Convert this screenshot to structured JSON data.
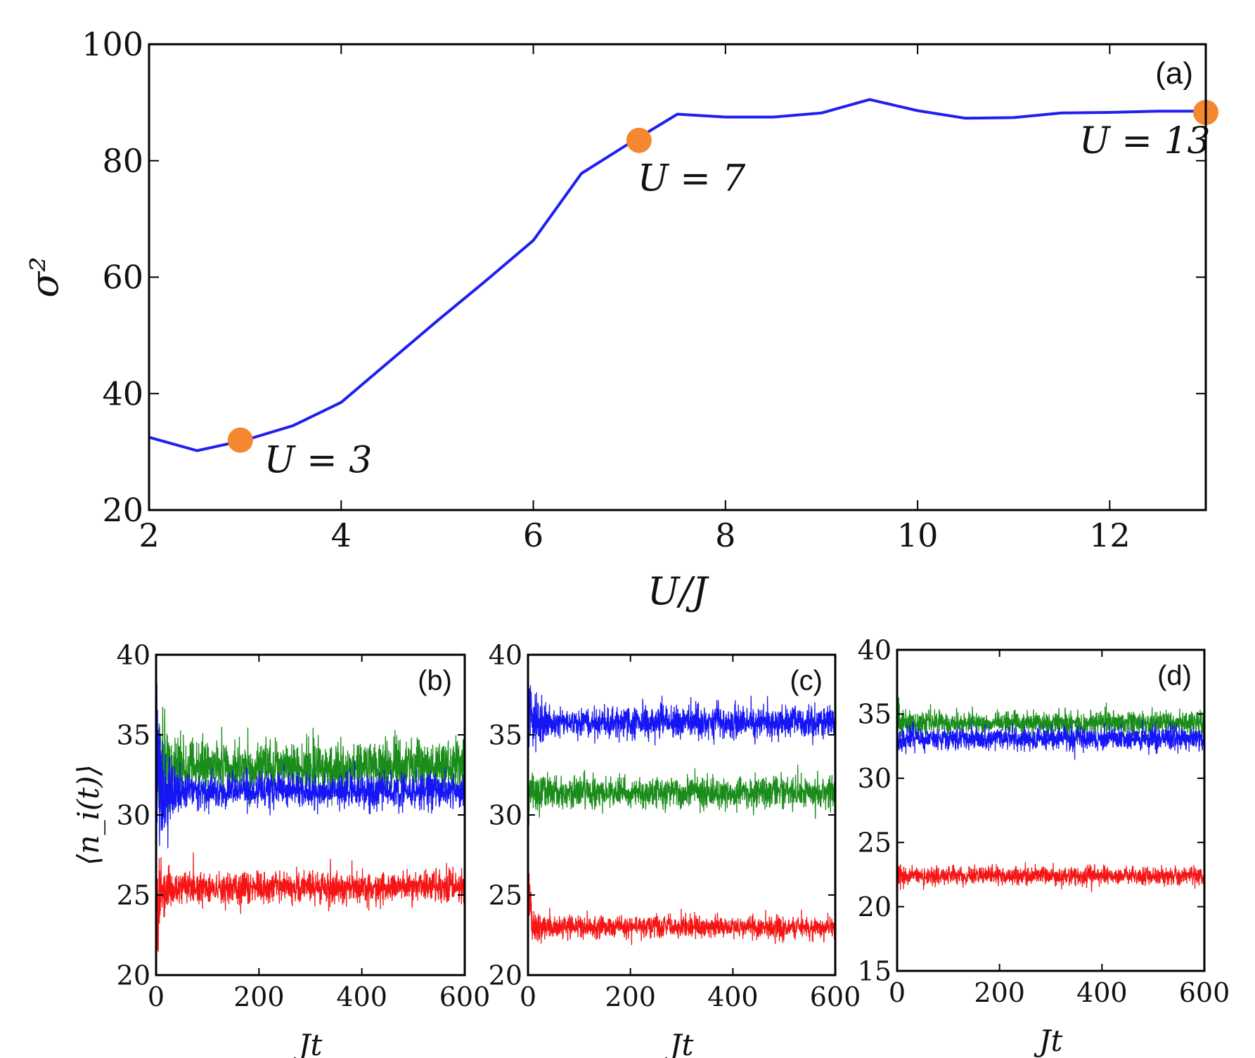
{
  "chart_data": [
    {
      "panel": "(a)",
      "type": "line",
      "xlabel": "U/J",
      "ylabel": "σ²",
      "xlim": [
        2,
        13
      ],
      "ylim": [
        20,
        100
      ],
      "xticks": [
        2,
        4,
        6,
        8,
        10,
        12
      ],
      "yticks": [
        20,
        40,
        60,
        80,
        100
      ],
      "series": [
        {
          "name": "sigma2",
          "color": "#1f1ff0",
          "x": [
            2,
            2.5,
            3,
            3.5,
            4,
            4.5,
            5,
            5.5,
            6,
            6.5,
            7,
            7.5,
            8,
            8.5,
            9,
            9.5,
            10,
            10.5,
            11,
            11.5,
            12,
            12.5,
            13
          ],
          "y": [
            32.5,
            30.2,
            32.0,
            34.5,
            38.5,
            45.5,
            52.5,
            59.3,
            66.3,
            77.8,
            83.0,
            88.0,
            87.5,
            87.5,
            88.2,
            90.5,
            88.6,
            87.3,
            87.4,
            88.2,
            88.3,
            88.5,
            88.5
          ]
        }
      ],
      "markers": [
        {
          "x": 2.95,
          "y": 32.0,
          "label": "U = 3",
          "color": "#f5872f"
        },
        {
          "x": 7.1,
          "y": 83.5,
          "label": "U = 7",
          "color": "#f5872f"
        },
        {
          "x": 13.0,
          "y": 88.3,
          "label": "U = 13",
          "color": "#f5872f"
        }
      ]
    },
    {
      "panel": "(b)",
      "type": "line",
      "xlabel": "Jt",
      "ylabel": "⟨n_i(t)⟩",
      "xlim": [
        0,
        600
      ],
      "ylim": [
        20,
        40
      ],
      "xticks": [
        0,
        200,
        400,
        600
      ],
      "yticks": [
        20,
        25,
        30,
        35,
        40
      ],
      "series": [
        {
          "name": "green",
          "color": "#1a8c1a",
          "mean": 33.0,
          "initial": 30.0,
          "noise": 0.75,
          "transient": 4.5
        },
        {
          "name": "blue",
          "color": "#1515f5",
          "mean": 31.5,
          "initial": 36.0,
          "noise": 0.55,
          "transient": 4.5
        },
        {
          "name": "red",
          "color": "#f51515",
          "mean": 25.5,
          "initial": 22.5,
          "noise": 0.5,
          "transient": 2.8
        }
      ]
    },
    {
      "panel": "(c)",
      "type": "line",
      "xlabel": "Jt",
      "ylabel": "",
      "xlim": [
        0,
        600
      ],
      "ylim": [
        20,
        40
      ],
      "xticks": [
        0,
        200,
        400,
        600
      ],
      "yticks": [
        20,
        25,
        30,
        35,
        40
      ],
      "series": [
        {
          "name": "blue",
          "color": "#1515f5",
          "mean": 35.8,
          "initial": 38.0,
          "noise": 0.5,
          "transient": 2.0
        },
        {
          "name": "green",
          "color": "#1a8c1a",
          "mean": 31.4,
          "initial": 30.0,
          "noise": 0.5,
          "transient": 1.5
        },
        {
          "name": "red",
          "color": "#f51515",
          "mean": 23.0,
          "initial": 26.5,
          "noise": 0.35,
          "transient": 1.8
        }
      ]
    },
    {
      "panel": "(d)",
      "type": "line",
      "xlabel": "Jt",
      "ylabel": "",
      "xlim": [
        0,
        600
      ],
      "ylim": [
        15,
        40
      ],
      "xticks": [
        0,
        200,
        400,
        600
      ],
      "yticks": [
        15,
        20,
        25,
        30,
        35,
        40
      ],
      "series": [
        {
          "name": "green",
          "color": "#1a8c1a",
          "mean": 34.3,
          "initial": 35.0,
          "noise": 0.45,
          "transient": 0.8
        },
        {
          "name": "blue",
          "color": "#1515f5",
          "mean": 33.1,
          "initial": 32.0,
          "noise": 0.45,
          "transient": 0.8
        },
        {
          "name": "red",
          "color": "#f51515",
          "mean": 22.4,
          "initial": 23.5,
          "noise": 0.35,
          "transient": 0.8
        }
      ]
    }
  ]
}
